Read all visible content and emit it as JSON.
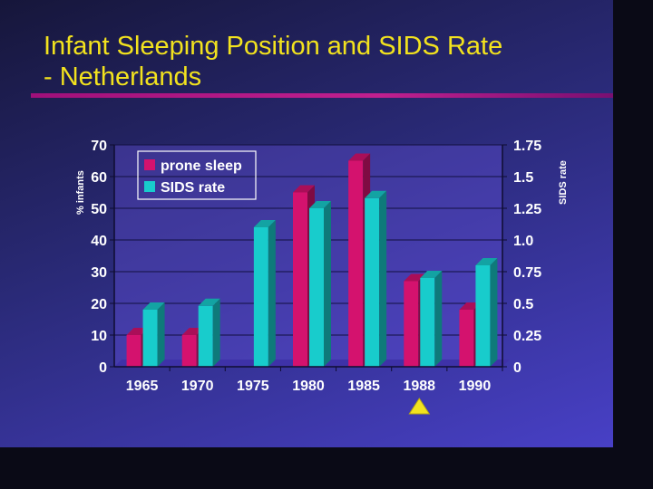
{
  "slide": {
    "title_line1": "Infant Sleeping Position and SIDS Rate",
    "title_line2": "- Netherlands",
    "accent": "#c0208f",
    "title_color": "#f2e21e"
  },
  "chart_data": {
    "type": "bar",
    "categories": [
      "1965",
      "1970",
      "1975",
      "1980",
      "1985",
      "1988",
      "1990"
    ],
    "series": [
      {
        "name": "prone sleep",
        "axis": "left",
        "color": "#d4126e",
        "values": [
          10,
          10,
          0,
          55,
          65,
          27,
          18
        ]
      },
      {
        "name": "SIDS rate",
        "axis": "right",
        "color": "#18cccc",
        "values": [
          0.45,
          0.48,
          1.1,
          1.25,
          1.33,
          0.7,
          0.8
        ]
      }
    ],
    "ylabel_left": "% infants",
    "ylabel_right": "SIDS rate",
    "ylim_left": [
      0,
      70
    ],
    "ylim_right": [
      0,
      1.75
    ],
    "yticks_left": [
      "0",
      "10",
      "20",
      "30",
      "40",
      "50",
      "60",
      "70"
    ],
    "yticks_right": [
      "0",
      "0.25",
      "0.5",
      "0.75",
      "1.0",
      "1.25",
      "1.5",
      "1.75"
    ],
    "grid": "horizontal",
    "legend_position": "top-left",
    "marker": {
      "category": "1988",
      "shape": "triangle",
      "color": "#f2e21e"
    }
  }
}
